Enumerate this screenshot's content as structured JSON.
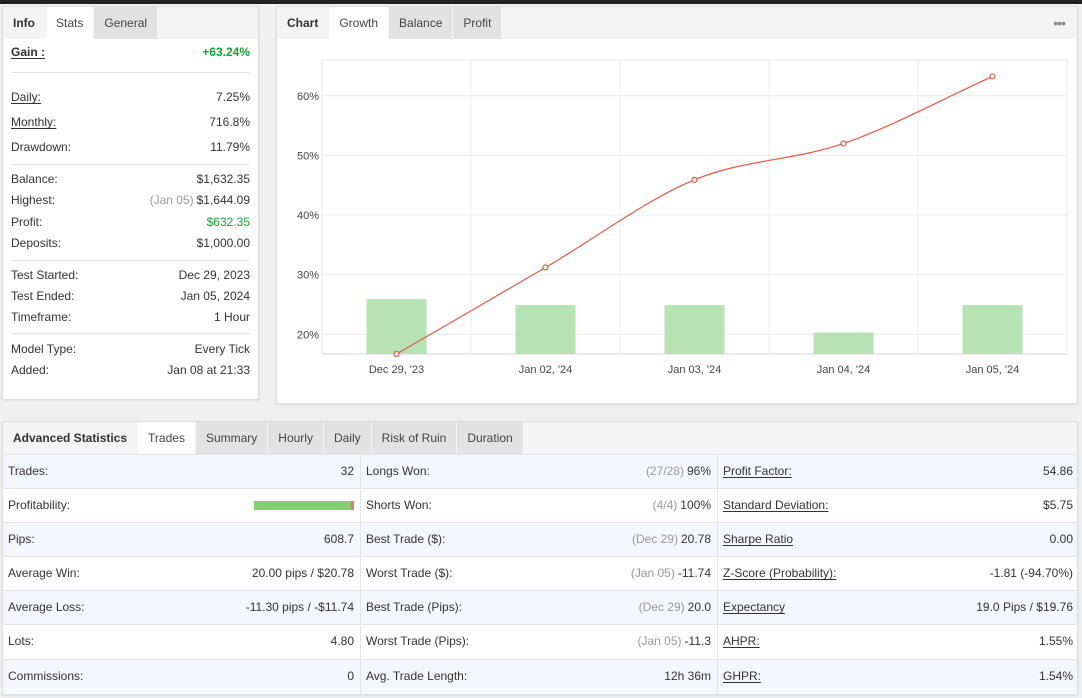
{
  "info_panel": {
    "tabs": [
      "Info",
      "Stats",
      "General"
    ],
    "rows": [
      {
        "label": "Gain :",
        "value": "+63.24%"
      },
      {
        "label": "Daily:",
        "value": "7.25%"
      },
      {
        "label": "Monthly:",
        "value": "716.8%"
      },
      {
        "label": "Drawdown:",
        "value": "11.79%"
      },
      {
        "label": "Balance:",
        "value": "$1,632.35"
      },
      {
        "label": "Highest:",
        "note": "(Jan 05)",
        "value": "$1,644.09"
      },
      {
        "label": "Profit:",
        "value": "$632.35"
      },
      {
        "label": "Deposits:",
        "value": "$1,000.00"
      },
      {
        "label": "Test Started:",
        "value": "Dec 29, 2023"
      },
      {
        "label": "Test Ended:",
        "value": "Jan 05, 2024"
      },
      {
        "label": "Timeframe:",
        "value": "1 Hour"
      },
      {
        "label": "Model Type:",
        "value": "Every Tick"
      },
      {
        "label": "Added:",
        "value": "Jan 08 at 21:33"
      }
    ]
  },
  "chart_panel": {
    "tabs": [
      "Chart",
      "Growth",
      "Balance",
      "Profit"
    ],
    "menu_icon": "more-dots-icon"
  },
  "chart_data": {
    "type": "line",
    "categories": [
      "Dec 29, '23",
      "Jan 02, '24",
      "Jan 03, '24",
      "Jan 04, '24",
      "Jan 05, '24"
    ],
    "yticks": [
      "20%",
      "30%",
      "40%",
      "50%",
      "60%"
    ],
    "ylim": [
      16.7,
      66
    ],
    "series": [
      {
        "type": "line",
        "color": "#e8574a",
        "values": [
          16.7,
          31.2,
          45.9,
          52.0,
          63.24
        ]
      },
      {
        "type": "bar",
        "color": "#b7e2b4",
        "values": [
          25.9,
          24.9,
          24.9,
          20.3,
          24.9
        ]
      }
    ],
    "grid": true
  },
  "adv_panel": {
    "tabs": [
      "Advanced Statistics",
      "Trades",
      "Summary",
      "Hourly",
      "Daily",
      "Risk of Ruin",
      "Duration"
    ],
    "rows": [
      {
        "c1": {
          "label": "Trades:",
          "value": "32"
        },
        "c2": {
          "label": "Longs Won:",
          "note": "(27/28)",
          "value": "96%"
        },
        "c3": {
          "label": "Profit Factor:",
          "value": "54.86"
        }
      },
      {
        "c1": {
          "label": "Profitability:",
          "bar": 0.97
        },
        "c2": {
          "label": "Shorts Won:",
          "note": "(4/4)",
          "value": "100%"
        },
        "c3": {
          "label": "Standard Deviation:",
          "value": "$5.75"
        }
      },
      {
        "c1": {
          "label": "Pips:",
          "value": "608.7"
        },
        "c2": {
          "label": "Best Trade ($):",
          "note": "(Dec 29)",
          "value": "20.78"
        },
        "c3": {
          "label": "Sharpe Ratio",
          "value": "0.00"
        }
      },
      {
        "c1": {
          "label": "Average Win:",
          "value": "20.00 pips / $20.78"
        },
        "c2": {
          "label": "Worst Trade ($):",
          "note": "(Jan 05)",
          "value": "-11.74"
        },
        "c3": {
          "label": "Z-Score (Probability):",
          "value": "-1.81 (-94.70%)"
        }
      },
      {
        "c1": {
          "label": "Average Loss:",
          "value": "-11.30 pips / -$11.74"
        },
        "c2": {
          "label": "Best Trade (Pips):",
          "note": "(Dec 29)",
          "value": "20.0"
        },
        "c3": {
          "label": "Expectancy",
          "value": "19.0 Pips / $19.76"
        }
      },
      {
        "c1": {
          "label": "Lots:",
          "value": "4.80"
        },
        "c2": {
          "label": "Worst Trade (Pips):",
          "note": "(Jan 05)",
          "value": "-11.3"
        },
        "c3": {
          "label": "AHPR:",
          "value": "1.55%"
        }
      },
      {
        "c1": {
          "label": "Commissions:",
          "value": "0"
        },
        "c2": {
          "label": "Avg. Trade Length:",
          "value": "12h 36m"
        },
        "c3": {
          "label": "GHPR:",
          "value": "1.54%"
        }
      }
    ]
  },
  "colors": {
    "positive": "#15a336",
    "line": "#e8574a",
    "bar": "#b7e2b4",
    "profit_bar": "#7fd36a",
    "loss_bar": "#e8766e"
  }
}
